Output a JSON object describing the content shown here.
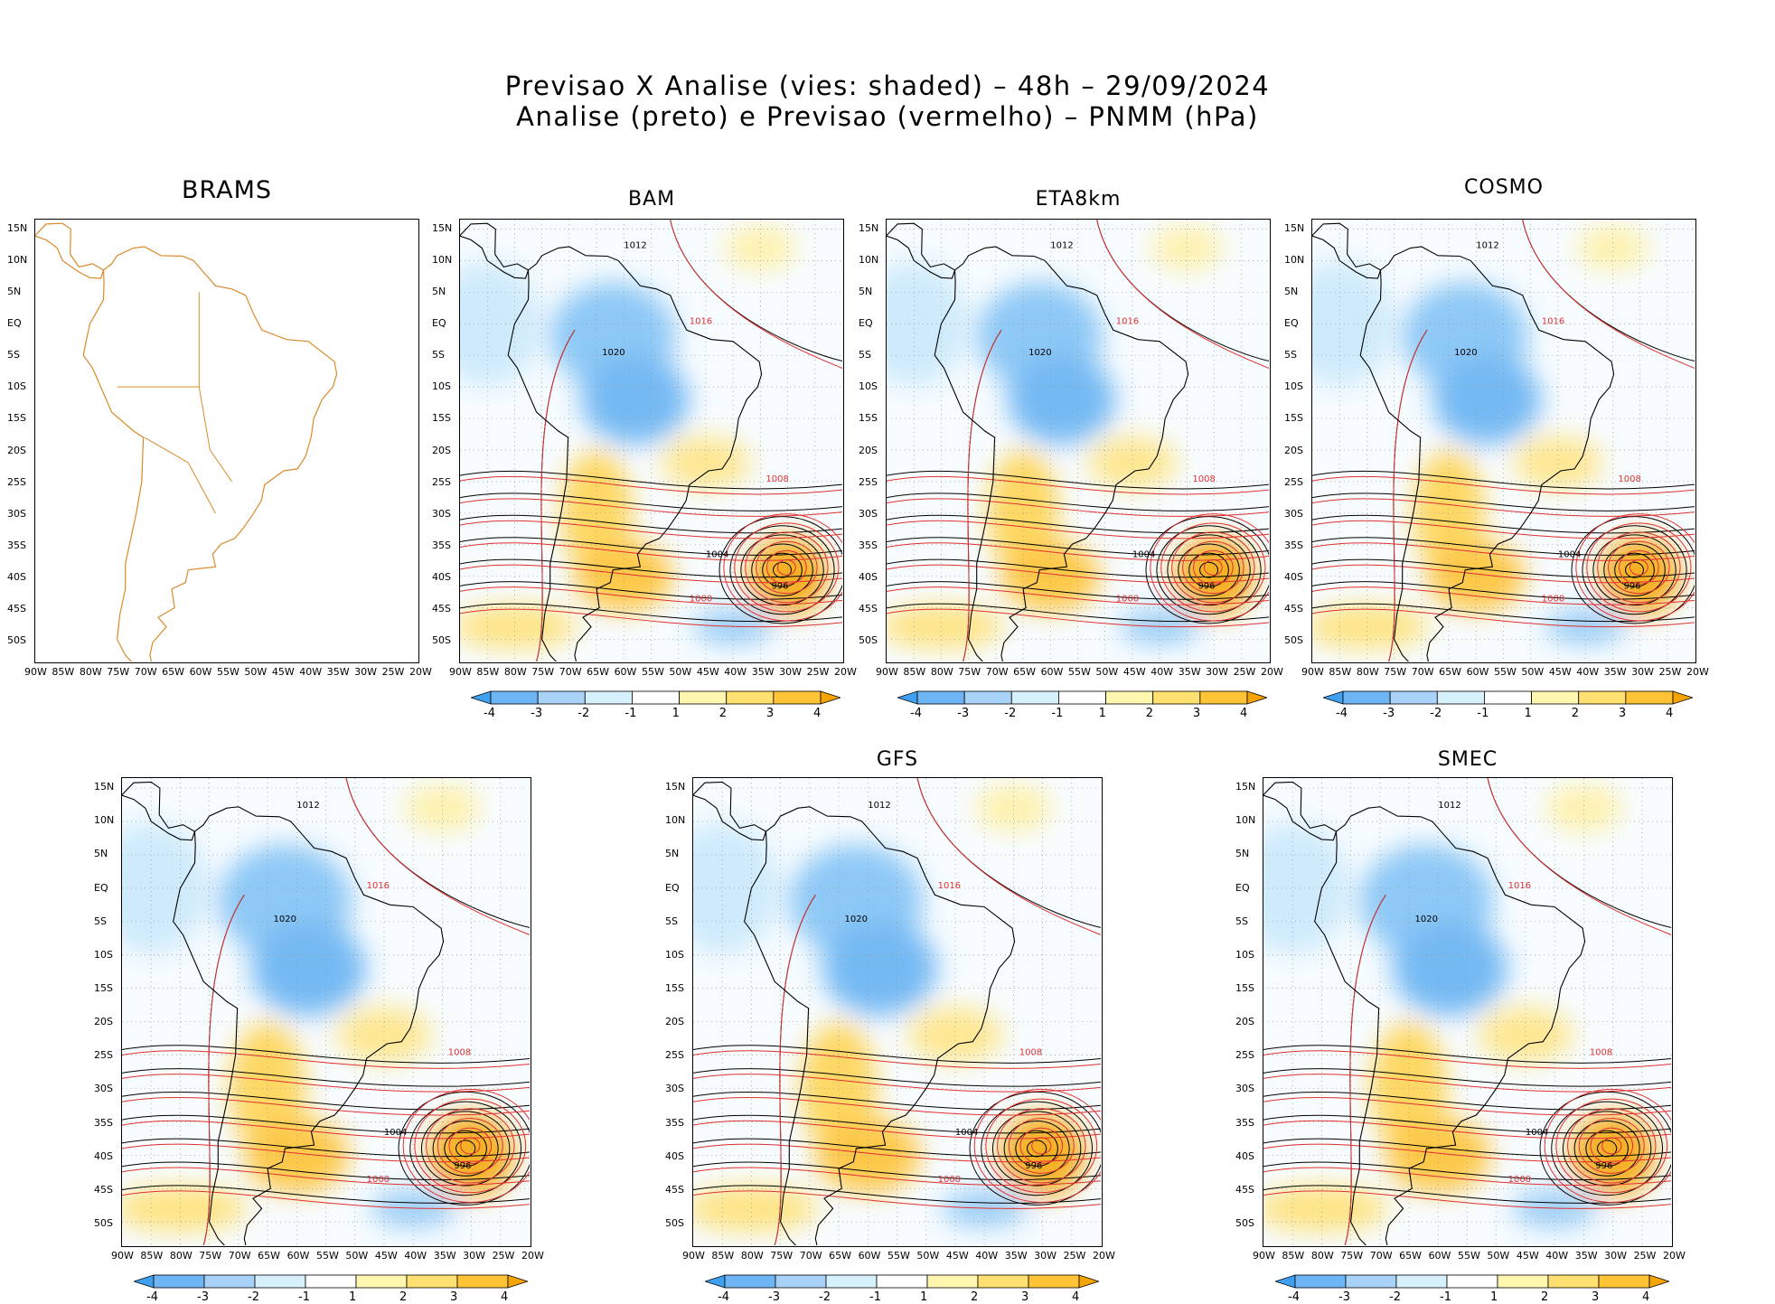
{
  "title": {
    "line1": "Previsao X Analise (vies: shaded) – 48h – 29/09/2024",
    "line2": "Analise (preto) e Previsao (vermelho) – PNMM (hPa)"
  },
  "axes": {
    "lat_labels": [
      "15N",
      "10N",
      "5N",
      "EQ",
      "5S",
      "10S",
      "15S",
      "20S",
      "25S",
      "30S",
      "35S",
      "40S",
      "45S",
      "50S"
    ],
    "lon_labels": [
      "90W",
      "85W",
      "80W",
      "75W",
      "70W",
      "65W",
      "60W",
      "55W",
      "50W",
      "45W",
      "40W",
      "35W",
      "30W",
      "25W",
      "20W"
    ]
  },
  "colorbar": {
    "tick_labels": [
      "-4",
      "-3",
      "-2",
      "-1",
      "1",
      "2",
      "3",
      "4"
    ],
    "colors": [
      "#3fa0f0",
      "#6eb5f5",
      "#a8d2f8",
      "#d6f1fb",
      "#ffffff",
      "#fff6b0",
      "#ffe070",
      "#ffc336",
      "#f5a300"
    ]
  },
  "colors": {
    "analysis": "#000000",
    "forecast": "#e03030",
    "coast": "#d98a2b"
  },
  "panels": [
    {
      "name": "BRAMS",
      "has_data": false,
      "contour_labels": []
    },
    {
      "name": "BAM",
      "has_data": true,
      "contour_labels": [
        "1012",
        "1016",
        "1020",
        "1008",
        "1004",
        "1000",
        "996"
      ]
    },
    {
      "name": "ETA8km",
      "has_data": true,
      "contour_labels": [
        "1012",
        "1016",
        "1020",
        "1008",
        "1004",
        "1000",
        "996"
      ]
    },
    {
      "name": "COSMO",
      "has_data": true,
      "contour_labels": [
        "1012",
        "1016",
        "1020",
        "1008",
        "1004",
        "1000",
        "996"
      ]
    },
    {
      "name": "",
      "has_data": true,
      "contour_labels": [
        "1012",
        "1016",
        "1020",
        "1008",
        "1004",
        "1000",
        "996"
      ]
    },
    {
      "name": "GFS",
      "has_data": true,
      "contour_labels": [
        "1012",
        "1016",
        "1020",
        "1008",
        "1004",
        "1000",
        "996"
      ]
    },
    {
      "name": "SMEC",
      "has_data": true,
      "contour_labels": [
        "1012",
        "1016",
        "1020",
        "1008",
        "1004",
        "1000",
        "996"
      ]
    }
  ]
}
